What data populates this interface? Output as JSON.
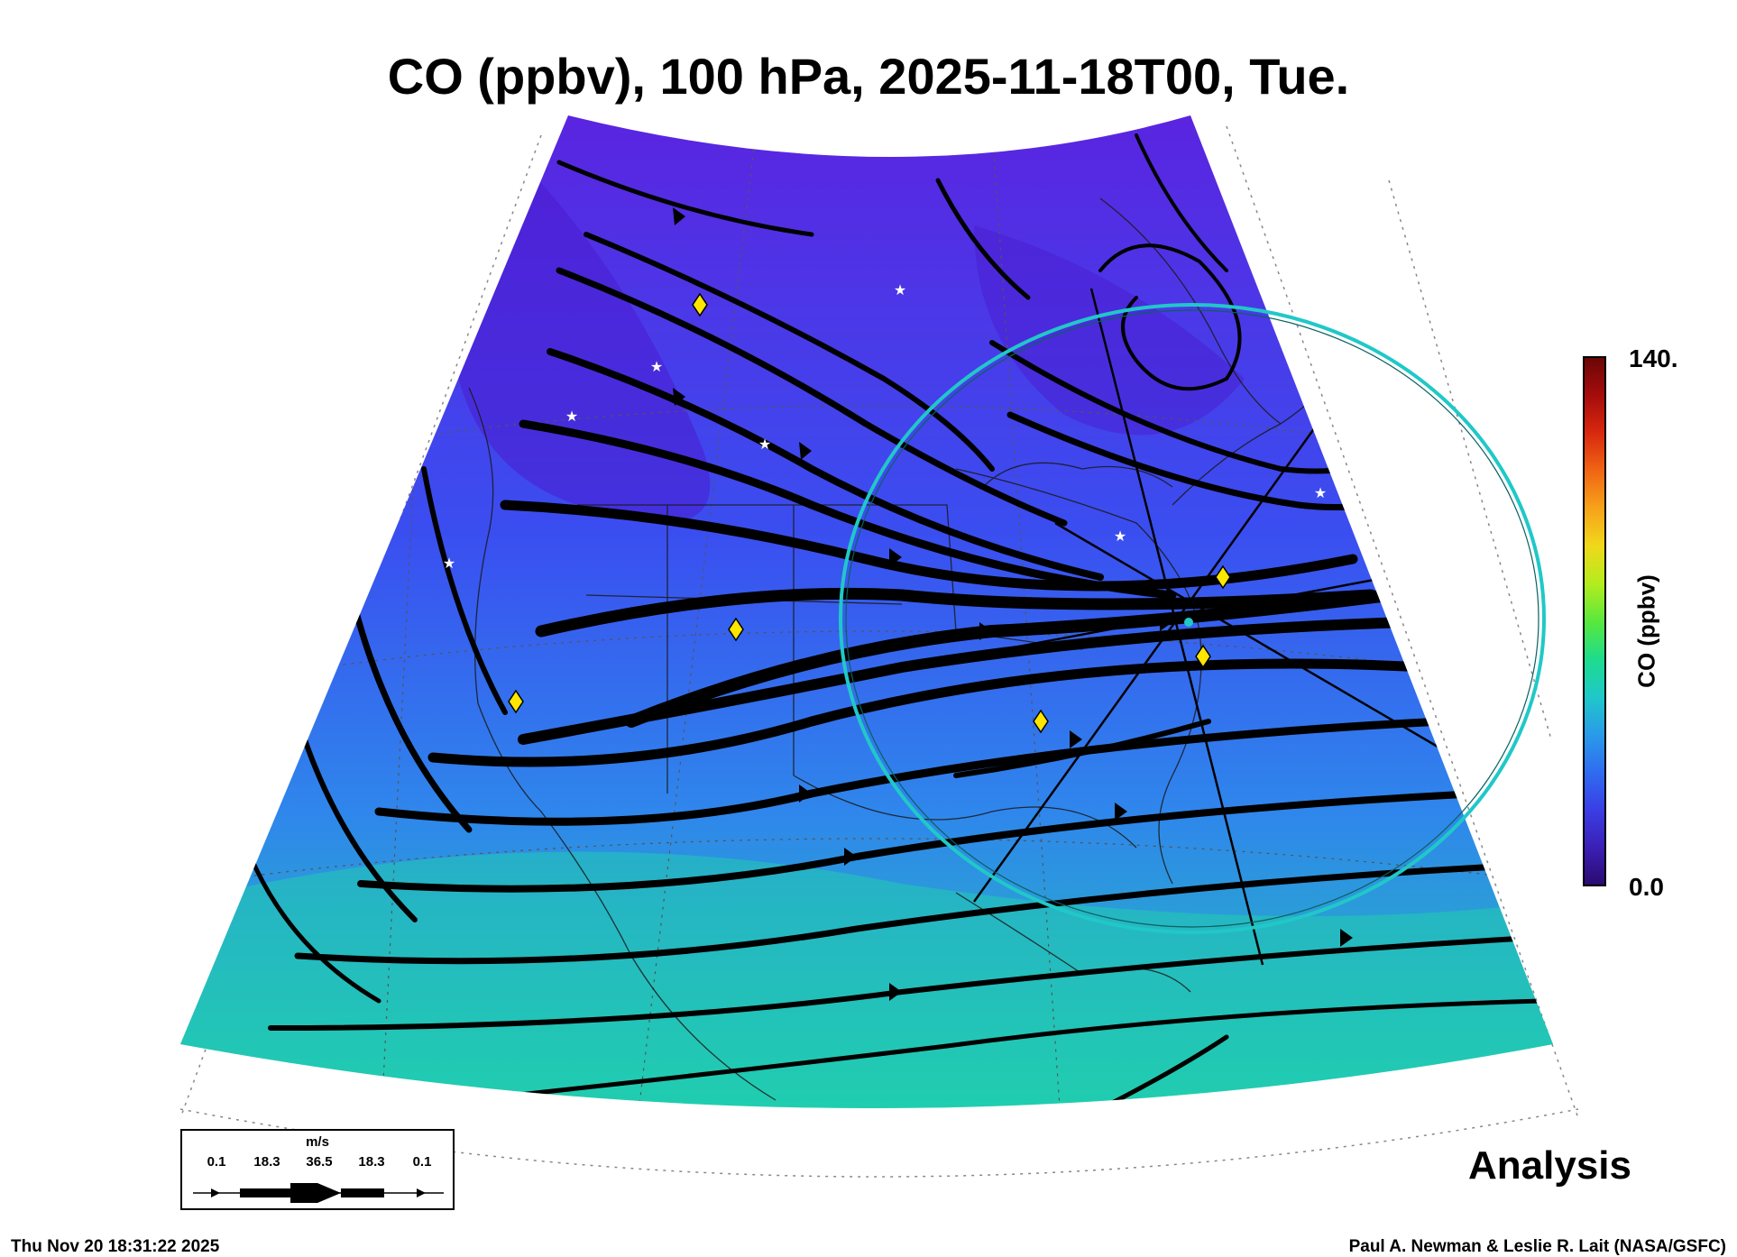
{
  "title": "CO (ppbv), 100 hPa, 2025-11-18T00, Tue.",
  "colorbar": {
    "max_label": "140.",
    "min_label": "0.0",
    "unit_label": "CO (ppbv)",
    "colors": [
      "#2a0a6e",
      "#3b1fb4",
      "#3a3ee6",
      "#2f6cf0",
      "#2a9be8",
      "#1fc8c8",
      "#1edc8c",
      "#59e83c",
      "#b4ec1e",
      "#f0d81a",
      "#f7a21a",
      "#f06414",
      "#d8280e",
      "#a40c0c",
      "#6a0606"
    ]
  },
  "field_colors": {
    "north": "#5a24e0",
    "mid": "#3a4ef0",
    "south_mid": "#2f86ec",
    "south": "#22c6b4"
  },
  "product_label": "Analysis",
  "wind_legend": {
    "unit": "m/s",
    "values": [
      "0.1",
      "18.3",
      "36.5",
      "18.3",
      "0.1"
    ]
  },
  "footer": {
    "timestamp": "Thu Nov 20 18:31:22 2025",
    "credit": "Paul A. Newman & Leslie R. Lait (NASA/GSFC)"
  },
  "marker_colors": {
    "diamond": "#ffe600",
    "star": "#ffffff",
    "circle": "#20c8c8"
  }
}
